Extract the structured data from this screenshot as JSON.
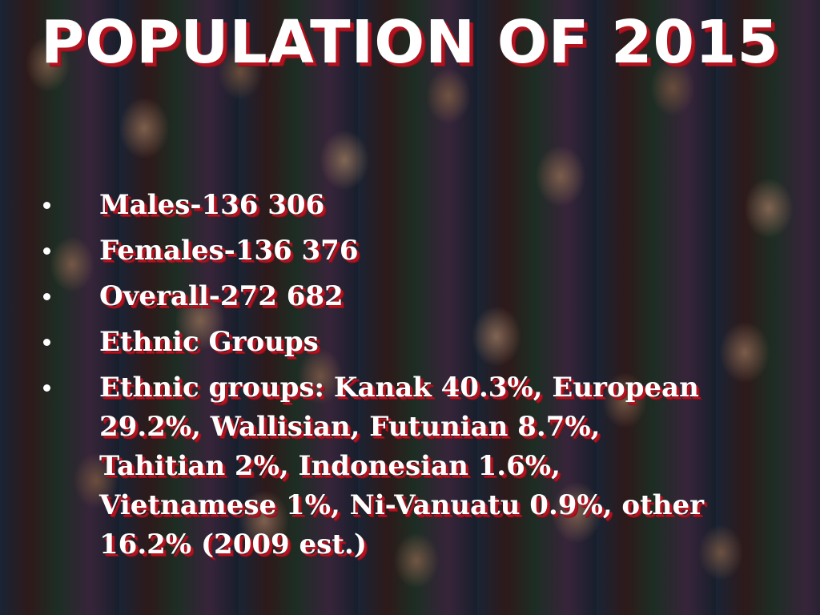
{
  "slide": {
    "title": "POPULATION OF 2015",
    "bullets": [
      "Males-136 306",
      "Females-136 376",
      "Overall-272 682",
      "Ethnic Groups",
      "Ethnic groups: Kanak 40.3%, European 29.2%, Wallisian, Futunian 8.7%, Tahitian 2%, Indonesian 1.6%, Vietnamese 1%, Ni-Vanuatu 0.9%, other 16.2% (2009 est.)"
    ]
  },
  "colors": {
    "text": "#ffffff",
    "shadow_accent": "#b3121f"
  }
}
